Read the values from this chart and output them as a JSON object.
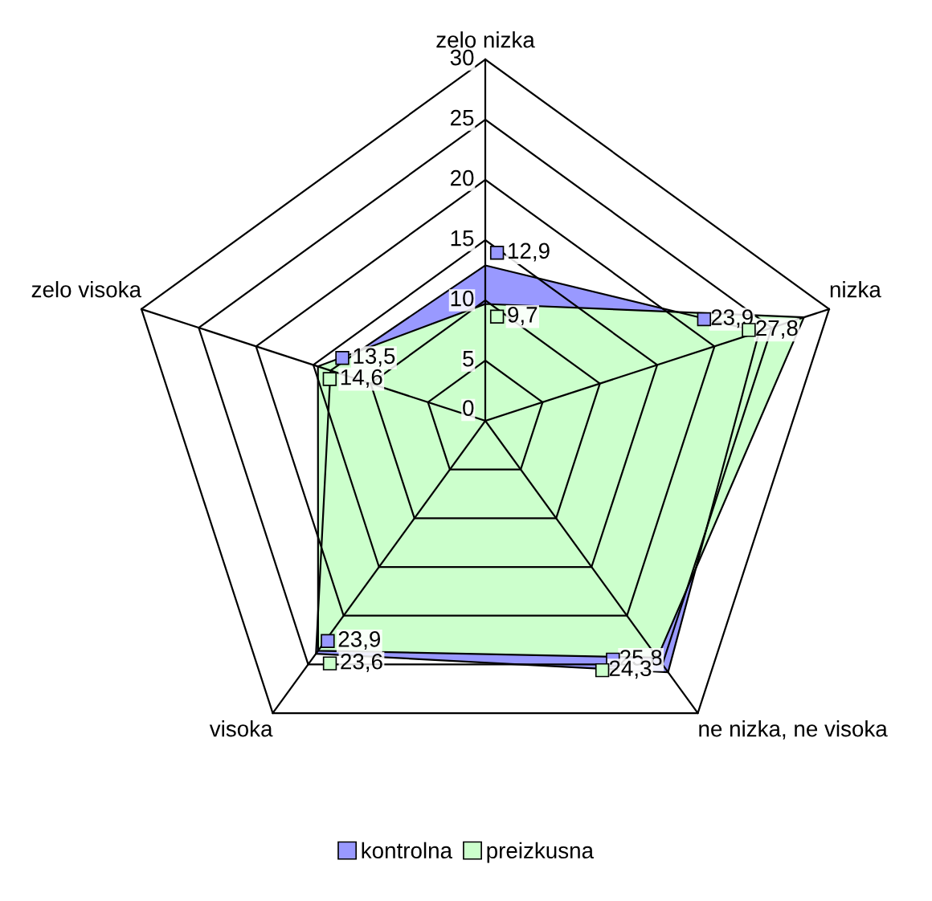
{
  "chart_data": {
    "type": "radar",
    "categories": [
      "zelo nizka",
      "nizka",
      "ne nizka, ne visoka",
      "visoka",
      "zelo visoka"
    ],
    "series": [
      {
        "name": "kontrolna",
        "color": "#9999ff",
        "values": [
          12.9,
          23.9,
          25.8,
          23.9,
          13.5
        ],
        "value_labels": [
          "12,9",
          "23,9",
          "25,8",
          "23,9",
          "13,5"
        ]
      },
      {
        "name": "preizkusna",
        "color": "#ccffcc",
        "values": [
          9.7,
          27.8,
          24.3,
          23.6,
          14.6
        ],
        "value_labels": [
          "9,7",
          "27,8",
          "24,3",
          "23,6",
          "14,6"
        ]
      }
    ],
    "ylim": [
      0,
      30
    ],
    "yticks": [
      0,
      5,
      10,
      15,
      20,
      25,
      30
    ],
    "grid": true,
    "legend": "bottom",
    "marker": "none"
  }
}
